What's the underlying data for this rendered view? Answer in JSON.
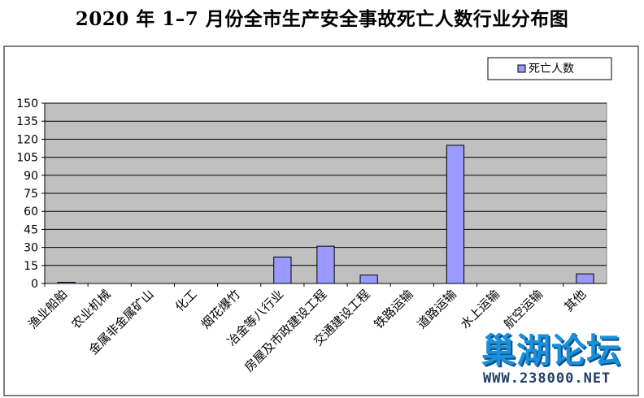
{
  "chart_data": {
    "type": "bar",
    "title": "2020 年 1–7 月份全市生产安全事故死亡人数行业分布图",
    "categories": [
      "渔业船舶",
      "农业机械",
      "金属非金属矿山",
      "化工",
      "烟花爆竹",
      "冶金等八行业",
      "房屋及市政建设工程",
      "交通建设工程",
      "铁路运输",
      "道路运输",
      "水上运输",
      "航空运输",
      "其他"
    ],
    "series": [
      {
        "name": "死亡人数",
        "values": [
          1,
          0,
          0,
          0,
          0,
          22,
          31,
          7,
          0,
          115,
          0,
          0,
          8
        ],
        "color": "#9999ff"
      }
    ],
    "yticks": [
      0,
      15,
      30,
      45,
      60,
      75,
      90,
      105,
      120,
      135,
      150
    ],
    "ylim": [
      0,
      150
    ],
    "grid": true,
    "legend_position": "top-right",
    "plot_background": "#c0c0c0"
  },
  "watermark": {
    "text": "巢湖论坛",
    "url": "WWW.238000.NET"
  }
}
